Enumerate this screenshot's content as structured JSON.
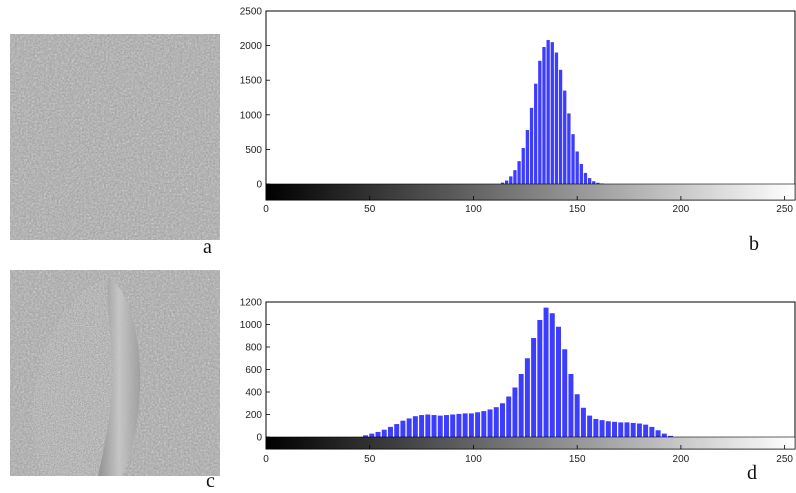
{
  "panels": {
    "a": {
      "letter": "a"
    },
    "b": {
      "letter": "b"
    },
    "c": {
      "letter": "c"
    },
    "d": {
      "letter": "d"
    }
  },
  "colors": {
    "bar": "#3d3dff",
    "frame": "#000000"
  },
  "chart_data": [
    {
      "id": "b",
      "type": "bar",
      "title": "",
      "xlabel": "",
      "ylabel": "",
      "xlim": [
        0,
        255
      ],
      "ylim": [
        0,
        2500
      ],
      "x_ticks": [
        0,
        50,
        100,
        150,
        200,
        250
      ],
      "x_tick_labels": [
        "0",
        "50",
        "100",
        "150",
        "200",
        "250"
      ],
      "y_ticks": [
        0,
        500,
        1000,
        1500,
        2000,
        2500
      ],
      "y_tick_labels": [
        "0",
        "500",
        "1000",
        "1500",
        "2000",
        "2500"
      ],
      "grayscale_colorbar": true,
      "x": [
        114,
        116,
        118,
        120,
        122,
        124,
        126,
        128,
        130,
        132,
        134,
        136,
        138,
        140,
        142,
        144,
        146,
        148,
        150,
        152,
        154,
        156,
        158,
        160,
        162
      ],
      "values": [
        20,
        50,
        110,
        200,
        330,
        520,
        780,
        1100,
        1450,
        1780,
        1980,
        2080,
        2050,
        1900,
        1650,
        1350,
        1020,
        720,
        470,
        290,
        160,
        85,
        40,
        18,
        8
      ]
    },
    {
      "id": "d",
      "type": "bar",
      "title": "",
      "xlabel": "",
      "ylabel": "",
      "xlim": [
        0,
        255
      ],
      "ylim": [
        0,
        1200
      ],
      "x_ticks": [
        0,
        50,
        100,
        150,
        200,
        250
      ],
      "x_tick_labels": [
        "0",
        "50",
        "100",
        "150",
        "200",
        "250"
      ],
      "y_ticks": [
        0,
        200,
        400,
        600,
        800,
        1000,
        1200
      ],
      "y_tick_labels": [
        "0",
        "200",
        "400",
        "600",
        "800",
        "1000",
        "1200"
      ],
      "grayscale_colorbar": true,
      "x": [
        48,
        51,
        54,
        57,
        60,
        63,
        66,
        69,
        72,
        75,
        78,
        81,
        84,
        87,
        90,
        93,
        96,
        99,
        102,
        105,
        108,
        111,
        114,
        117,
        120,
        123,
        126,
        129,
        132,
        135,
        138,
        141,
        144,
        147,
        150,
        153,
        156,
        159,
        162,
        165,
        168,
        171,
        174,
        177,
        180,
        183,
        186,
        189,
        192,
        195
      ],
      "values": [
        15,
        30,
        45,
        65,
        90,
        115,
        145,
        165,
        185,
        195,
        200,
        195,
        190,
        195,
        200,
        205,
        210,
        210,
        220,
        230,
        245,
        265,
        300,
        360,
        440,
        560,
        700,
        880,
        1040,
        1150,
        1100,
        980,
        780,
        560,
        380,
        260,
        190,
        160,
        150,
        140,
        135,
        130,
        130,
        125,
        120,
        110,
        90,
        60,
        30,
        10
      ]
    }
  ]
}
